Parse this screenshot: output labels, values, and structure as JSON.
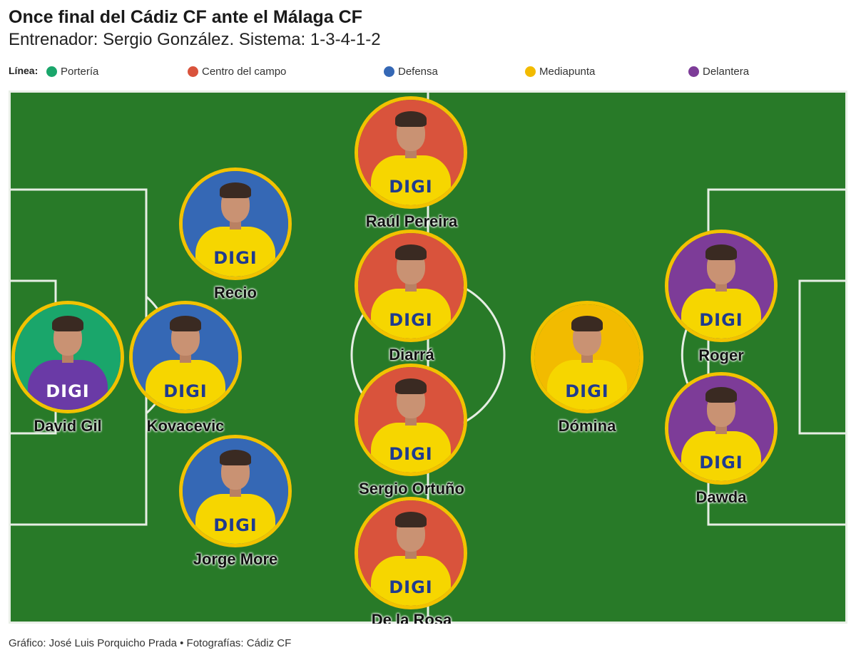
{
  "header": {
    "title": "Once final del Cádiz CF ante el Málaga CF",
    "subtitle": "Entrenador: Sergio González. Sistema: 1-3-4-1-2"
  },
  "legend": {
    "label": "Línea:",
    "items": [
      {
        "label": "Portería",
        "color": "#1aa66b"
      },
      {
        "label": "Centro del campo",
        "color": "#d9533c"
      },
      {
        "label": "Defensa",
        "color": "#3568b5"
      },
      {
        "label": "Mediapunta",
        "color": "#f2bb00"
      },
      {
        "label": "Delantera",
        "color": "#7d3c98"
      }
    ]
  },
  "pitch_color": "#287a28",
  "border_color": "#f2c200",
  "players": [
    {
      "name": "David Gil",
      "line": "Portería",
      "color": "#1aa66b",
      "sponsor": "DIGI"
    },
    {
      "name": "Recio",
      "line": "Defensa",
      "color": "#3568b5",
      "sponsor": "DIGI"
    },
    {
      "name": "Kovacevic",
      "line": "Defensa",
      "color": "#3568b5",
      "sponsor": "DIGI"
    },
    {
      "name": "Jorge More",
      "line": "Defensa",
      "color": "#3568b5",
      "sponsor": "DIGI"
    },
    {
      "name": "Raúl Pereira",
      "line": "Centro del campo",
      "color": "#d9533c",
      "sponsor": "DIGI"
    },
    {
      "name": "Diarrá",
      "line": "Centro del campo",
      "color": "#d9533c",
      "sponsor": "DIGI"
    },
    {
      "name": "Sergio Ortuño",
      "line": "Centro del campo",
      "color": "#d9533c",
      "sponsor": "DIGI"
    },
    {
      "name": "De la Rosa",
      "line": "Centro del campo",
      "color": "#d9533c",
      "sponsor": "DIGI"
    },
    {
      "name": "Dómina",
      "line": "Mediapunta",
      "color": "#f2bb00",
      "sponsor": "DIGI"
    },
    {
      "name": "Roger",
      "line": "Delantera",
      "color": "#7d3c98",
      "sponsor": "DIGI"
    },
    {
      "name": "Dawda",
      "line": "Delantera",
      "color": "#7d3c98",
      "sponsor": "DIGI"
    }
  ],
  "footer": {
    "credit": "Gráfico: José Luis Porquicho Prada • Fotografías: Cádiz CF"
  }
}
